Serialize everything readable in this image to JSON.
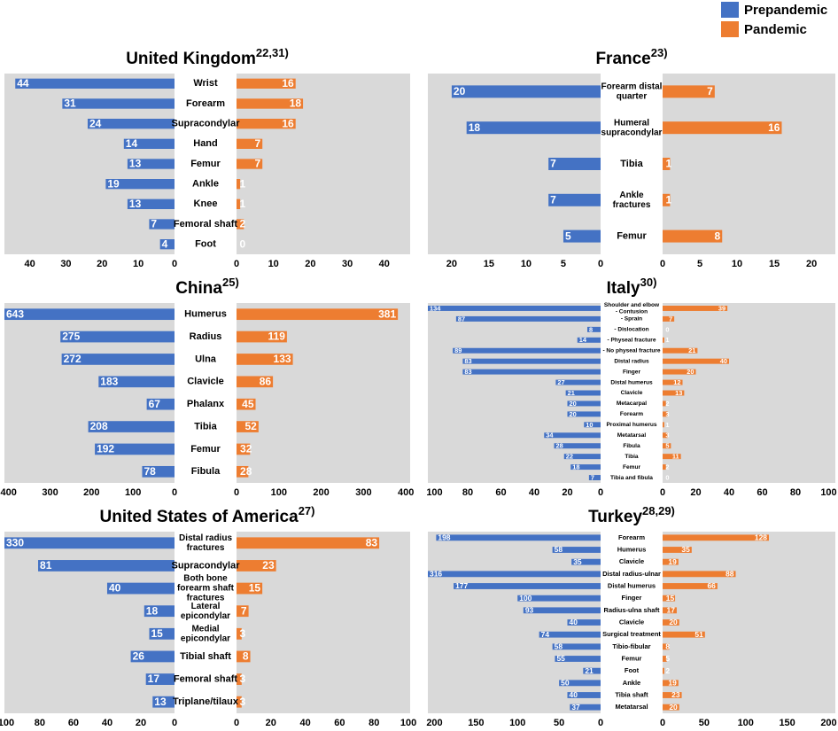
{
  "legend": [
    {
      "name": "Prepandemic",
      "color": "#4472c4"
    },
    {
      "name": "Pandemic",
      "color": "#ed7d31"
    }
  ],
  "chart_data": [
    {
      "type": "butterfly",
      "title": "United Kingdom",
      "title_sup": "22,31)",
      "xlim": [
        0,
        47
      ],
      "categories": [
        "Wrist",
        "Forearm",
        "Supracondylar",
        "Hand",
        "Femur",
        "Ankle",
        "Knee",
        "Femoral shaft",
        "Foot"
      ],
      "series": [
        {
          "values": [
            44,
            31,
            24,
            14,
            13,
            19,
            13,
            7,
            4
          ]
        },
        {
          "values": [
            16,
            18,
            16,
            7,
            7,
            1,
            1,
            2,
            0
          ]
        }
      ],
      "xticks_left": [
        40,
        30,
        20,
        10,
        0
      ],
      "xticks_right": [
        0,
        10,
        20,
        30,
        40
      ]
    },
    {
      "type": "butterfly",
      "title": "France",
      "title_sup": "23)",
      "xlim": [
        0,
        23.2
      ],
      "categories": [
        [
          "Forearm distal",
          "quarter"
        ],
        [
          "Humeral",
          "supracondylar"
        ],
        "Tibia",
        [
          "Ankle",
          "fractures"
        ],
        "Femur"
      ],
      "series": [
        {
          "values": [
            20,
            18,
            7,
            7,
            5
          ]
        },
        {
          "values": [
            7,
            16,
            1,
            1,
            8
          ]
        }
      ],
      "xticks_left": [
        20,
        15,
        10,
        5,
        0
      ],
      "xticks_right": [
        0,
        5,
        10,
        15,
        20
      ]
    },
    {
      "type": "butterfly",
      "title": "China",
      "title_sup": "25)",
      "xlim": [
        0,
        410
      ],
      "categories": [
        "Humerus",
        "Radius",
        "Ulna",
        "Clavicle",
        "Phalanx",
        "Tibia",
        "Femur",
        "Fibula"
      ],
      "series": [
        {
          "values": [
            643,
            275,
            272,
            183,
            67,
            208,
            192,
            78
          ]
        },
        {
          "values": [
            381,
            119,
            133,
            86,
            45,
            52,
            32,
            28
          ]
        }
      ],
      "xticks_left": [
        400,
        300,
        200,
        100,
        0
      ],
      "xticks_right": [
        0,
        100,
        200,
        300,
        400
      ]
    },
    {
      "type": "butterfly",
      "title": "Italy",
      "title_sup": "30)",
      "xlim": [
        0,
        104
      ],
      "categories": [
        [
          "Shoulder and elbow",
          "- Contusion"
        ],
        "- Sprain",
        "- Dislocation",
        "- Physeal fracture",
        "- No physeal fracture",
        "Distal radius",
        "Finger",
        "Distal humerus",
        "Clavicle",
        "Metacarpal",
        "Forearm",
        "Proximal humerus",
        "Metatarsal",
        "Fibula",
        "Tibia",
        "Femur",
        "Tibia and fibula"
      ],
      "series": [
        {
          "values": [
            134,
            87,
            8,
            14,
            89,
            83,
            83,
            27,
            21,
            20,
            20,
            10,
            34,
            28,
            22,
            18,
            7
          ]
        },
        {
          "values": [
            39,
            7,
            0,
            1,
            21,
            40,
            20,
            12,
            13,
            2,
            3,
            1,
            3,
            5,
            11,
            2,
            0
          ]
        }
      ],
      "xticks_left": [
        100,
        80,
        60,
        40,
        20,
        0
      ],
      "xticks_right": [
        0,
        20,
        40,
        60,
        80,
        100
      ]
    },
    {
      "type": "butterfly",
      "title": "United States of America",
      "title_sup": "27)",
      "xlim": [
        0,
        101
      ],
      "categories": [
        [
          "Distal radius",
          "fractures"
        ],
        "Supracondylar",
        [
          "Both bone",
          "forearm shaft",
          "fractures"
        ],
        [
          "Lateral",
          "epicondylar"
        ],
        [
          "Medial",
          "epicondylar"
        ],
        "Tibial shaft",
        "Femoral shaft",
        "Triplane/tilaux"
      ],
      "series": [
        {
          "values": [
            330,
            81,
            40,
            18,
            15,
            26,
            17,
            13
          ]
        },
        {
          "values": [
            83,
            23,
            15,
            7,
            3,
            8,
            3,
            3
          ]
        }
      ],
      "xticks_left": [
        100,
        80,
        60,
        40,
        20,
        0
      ],
      "xticks_right": [
        0,
        20,
        40,
        60,
        80,
        100
      ]
    },
    {
      "type": "butterfly",
      "title": "Turkey",
      "title_sup": "28,29)",
      "xlim": [
        0,
        208
      ],
      "categories": [
        "Forearm",
        "Humerus",
        "Clavicle",
        "Distal radius-ulnar",
        "Distal humerus",
        "Finger",
        "Radius-ulna shaft",
        "Clavicle",
        "Surgical treatment",
        "Tibio-fibular",
        "Femur",
        "Foot",
        "Ankle",
        "Tibia shaft",
        "Metatarsal"
      ],
      "series": [
        {
          "values": [
            198,
            58,
            35,
            316,
            177,
            100,
            93,
            40,
            74,
            58,
            55,
            21,
            50,
            40,
            37
          ]
        },
        {
          "values": [
            128,
            35,
            19,
            88,
            66,
            15,
            17,
            20,
            51,
            8,
            5,
            2,
            19,
            23,
            20
          ]
        }
      ],
      "xticks_left": [
        200,
        150,
        100,
        50,
        0
      ],
      "xticks_right": [
        0,
        50,
        100,
        150,
        200
      ]
    }
  ]
}
